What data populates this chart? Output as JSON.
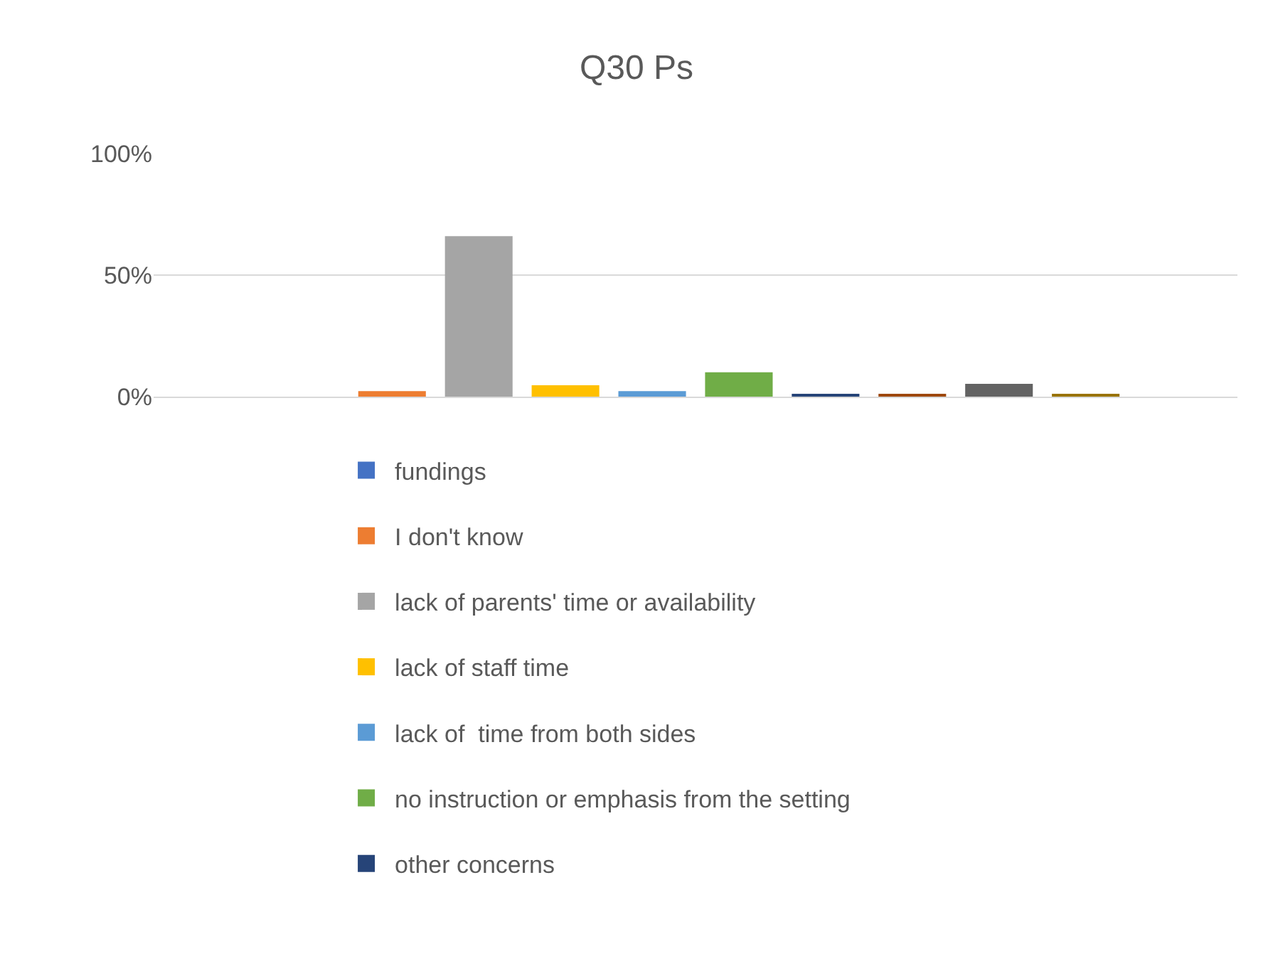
{
  "chart_data": {
    "type": "bar",
    "title": "Q30 Ps",
    "categories": [
      null
    ],
    "series": [
      {
        "name": "fundings",
        "color": "#4472c4",
        "values": [
          0
        ]
      },
      {
        "name": "I don't know",
        "color": "#ed7d31",
        "values": [
          2.3
        ]
      },
      {
        "name": "lack of parents' time or availability",
        "color": "#a5a5a5",
        "values": [
          66
        ]
      },
      {
        "name": "lack of staff time",
        "color": "#ffc000",
        "values": [
          4.7
        ]
      },
      {
        "name": "lack of  time from both sides",
        "color": "#5b9bd5",
        "values": [
          2.3
        ]
      },
      {
        "name": "no instruction or emphasis from the setting",
        "color": "#70ad47",
        "values": [
          10
        ]
      },
      {
        "name": "other concerns",
        "color": "#264478",
        "values": [
          0.6
        ]
      },
      {
        "color": "#9e480e",
        "values": [
          0.6
        ]
      },
      {
        "color": "#636363",
        "values": [
          5.3
        ]
      },
      {
        "color": "#997300",
        "values": [
          0.6
        ]
      }
    ],
    "ylim": [
      0,
      100
    ],
    "yticks": [
      {
        "value": 0,
        "label": "0%"
      },
      {
        "value": 50,
        "label": "50%"
      },
      {
        "value": 100,
        "label": "100%"
      }
    ],
    "grid": "y",
    "legend": "bottom",
    "tick_labels": "y"
  }
}
